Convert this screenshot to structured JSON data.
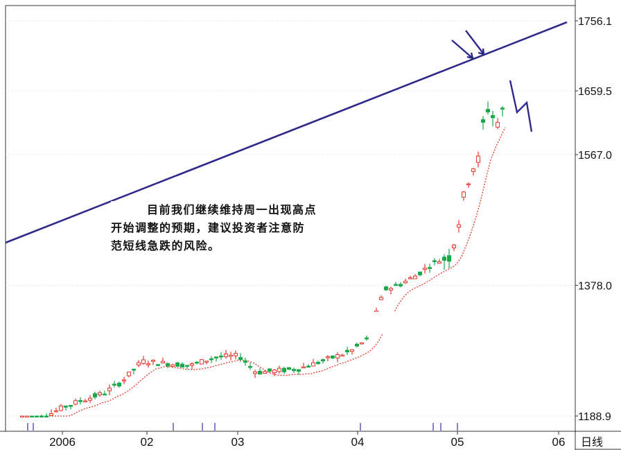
{
  "chart_data": {
    "type": "candlestick",
    "period_label": "日线",
    "y_ticks": [
      "1756.1",
      "1659.5",
      "1567.0",
      "1378.0",
      "1188.9"
    ],
    "y_tick_values": [
      1756.1,
      1659.5,
      1567.0,
      1378.0,
      1188.9
    ],
    "x_ticks": [
      "2006",
      "02",
      "03",
      "04",
      "05",
      "06"
    ],
    "annotation": [
      "目前我们继续维持周一出现高点",
      "开始调整的预期，建议投资者注意防",
      "范短线急跌的风险。"
    ],
    "colors": {
      "up": "#e8362a",
      "down": "#18a84a",
      "trendline": "#2e2a8c",
      "ma": "#e8362a",
      "frame": "#333333"
    }
  }
}
